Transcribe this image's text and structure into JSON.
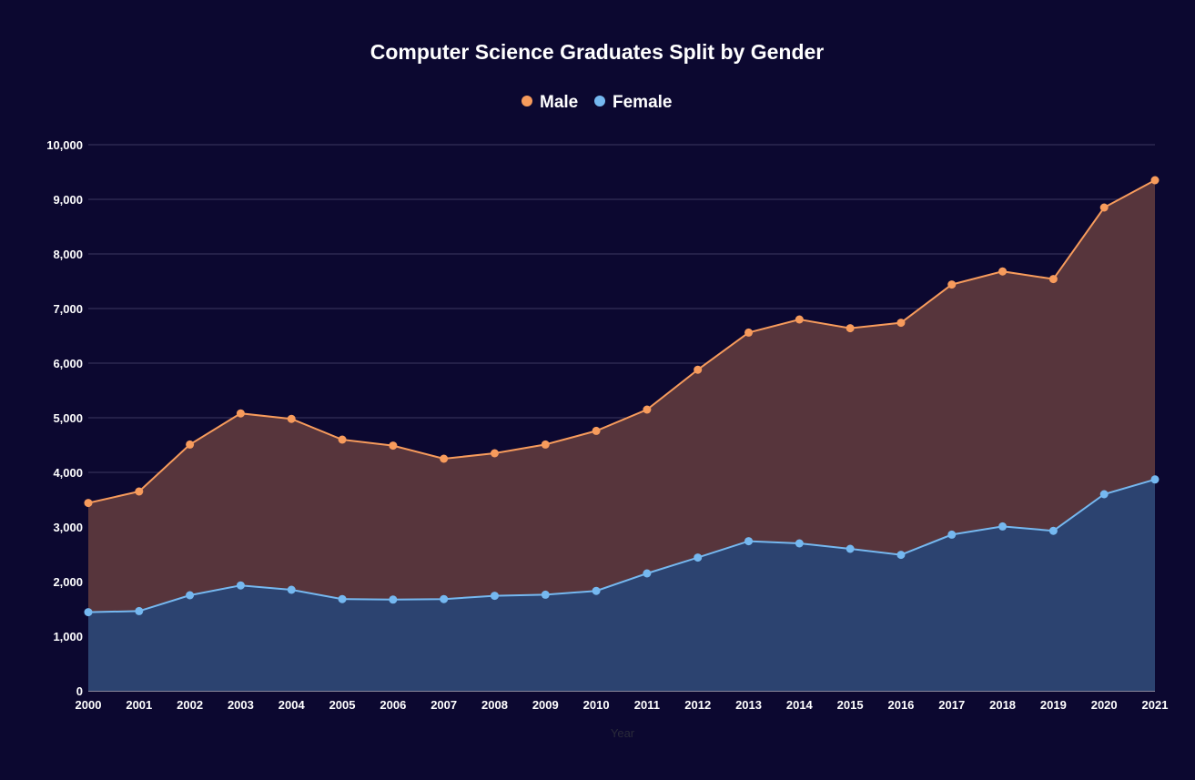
{
  "chart_data": {
    "type": "area",
    "title": "Computer Science Graduates Split by Gender",
    "xlabel": "Year",
    "ylabel": "",
    "ylim": [
      0,
      10000
    ],
    "yticks": [
      "0",
      "1,000",
      "2,000",
      "3,000",
      "4,000",
      "5,000",
      "6,000",
      "7,000",
      "8,000",
      "9,000",
      "10,000"
    ],
    "grid": true,
    "legend_position": "top-center",
    "categories": [
      "2000",
      "2001",
      "2002",
      "2003",
      "2004",
      "2005",
      "2006",
      "2007",
      "2008",
      "2009",
      "2010",
      "2011",
      "2012",
      "2013",
      "2014",
      "2015",
      "2016",
      "2017",
      "2018",
      "2019",
      "2020",
      "2021"
    ],
    "series": [
      {
        "name": "Male",
        "line_color": "#f79b5c",
        "fill_color": "#57353c",
        "values": [
          3440,
          3650,
          4510,
          5080,
          4980,
          4600,
          4490,
          4250,
          4350,
          4510,
          4760,
          5150,
          5880,
          6560,
          6800,
          6640,
          6740,
          7440,
          7680,
          7540,
          8850,
          9350
        ]
      },
      {
        "name": "Female",
        "line_color": "#75b8f0",
        "fill_color": "#2c4370",
        "values": [
          1440,
          1460,
          1750,
          1930,
          1850,
          1680,
          1670,
          1680,
          1740,
          1760,
          1830,
          2150,
          2440,
          2740,
          2700,
          2600,
          2490,
          2860,
          3010,
          2930,
          3600,
          3870
        ]
      }
    ]
  },
  "colors": {
    "background": "#0c0830",
    "grid": "#3b3760",
    "text": "#ffffff"
  }
}
